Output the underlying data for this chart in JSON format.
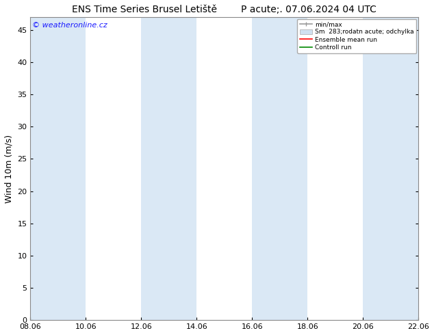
{
  "title": "ENS Time Series Brusel Letiště        P acute;. 07.06.2024 04 UTC",
  "ylabel": "Wind 10m (m/s)",
  "ylim": [
    0,
    47
  ],
  "yticks": [
    0,
    5,
    10,
    15,
    20,
    25,
    30,
    35,
    40,
    45
  ],
  "xlabels": [
    "08.06",
    "10.06",
    "12.06",
    "14.06",
    "16.06",
    "18.06",
    "20.06",
    "22.06"
  ],
  "xtick_positions": [
    0,
    2,
    4,
    6,
    8,
    10,
    12,
    14
  ],
  "total_days": 14,
  "bg_color": "#ffffff",
  "band_color_blue": "#dae8f5",
  "band_color_white": "#ffffff",
  "watermark": "© weatheronline.cz",
  "watermark_color": "#1a1aff",
  "legend_labels": [
    "min/max",
    "Sm  283;rodatn acute; odchylka",
    "Ensemble mean run",
    "Controll run"
  ],
  "legend_colors": [
    "#aaaaaa",
    "#cccccc",
    "#ff0000",
    "#008800"
  ],
  "title_fontsize": 10,
  "label_fontsize": 9,
  "tick_fontsize": 8,
  "watermark_fontsize": 8
}
